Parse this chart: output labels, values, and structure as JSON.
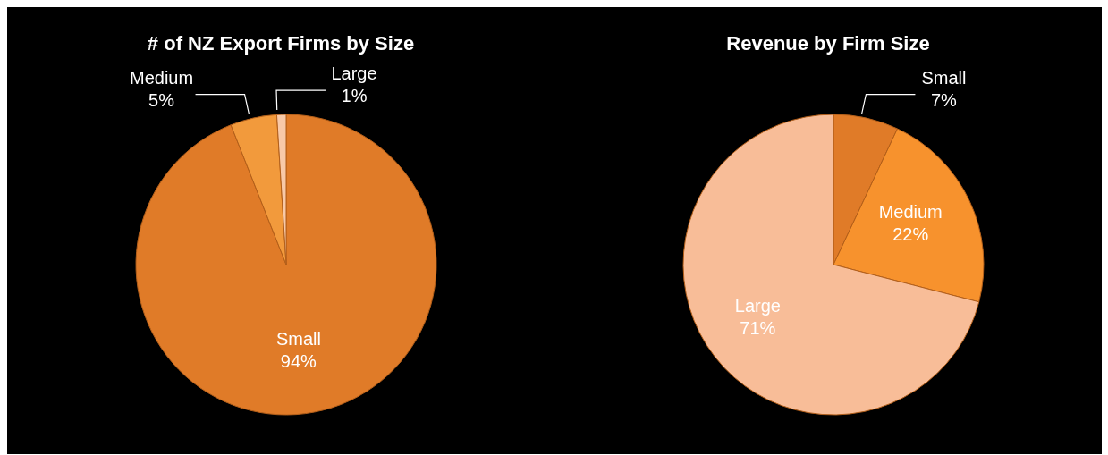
{
  "chart_data": [
    {
      "type": "pie",
      "title": "# of NZ Export Firms by Size",
      "categories": [
        "Small",
        "Medium",
        "Large"
      ],
      "values": [
        94,
        5,
        1
      ],
      "colors": [
        "#e07b28",
        "#f29a3c",
        "#f8c9a8"
      ],
      "value_labels": [
        "94%",
        "5%",
        "1%"
      ]
    },
    {
      "type": "pie",
      "title": "Revenue by Firm Size",
      "categories": [
        "Small",
        "Medium",
        "Large"
      ],
      "values": [
        7,
        22,
        71
      ],
      "colors": [
        "#e07b28",
        "#f7922d",
        "#f8bd98"
      ],
      "value_labels": [
        "7%",
        "22%",
        "71%"
      ]
    }
  ]
}
